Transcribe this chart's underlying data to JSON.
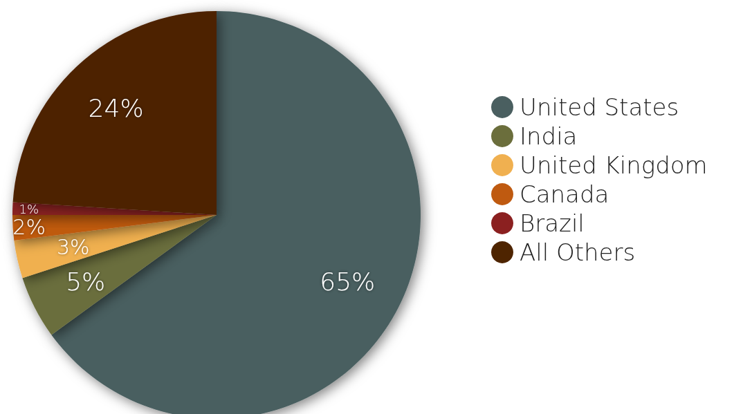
{
  "chart_data": {
    "type": "pie",
    "categories": [
      "United States",
      "India",
      "United Kingdom",
      "Canada",
      "Brazil",
      "All Others"
    ],
    "values": [
      65,
      5,
      3,
      2,
      1,
      24
    ],
    "colors": [
      "#4a5f60",
      "#6b6e3c",
      "#f0b050",
      "#bf5a10",
      "#8b2020",
      "#4e2400"
    ],
    "value_labels": [
      "65%",
      "5%",
      "3%",
      "2%",
      "1%",
      "24%"
    ],
    "legend": "right"
  }
}
